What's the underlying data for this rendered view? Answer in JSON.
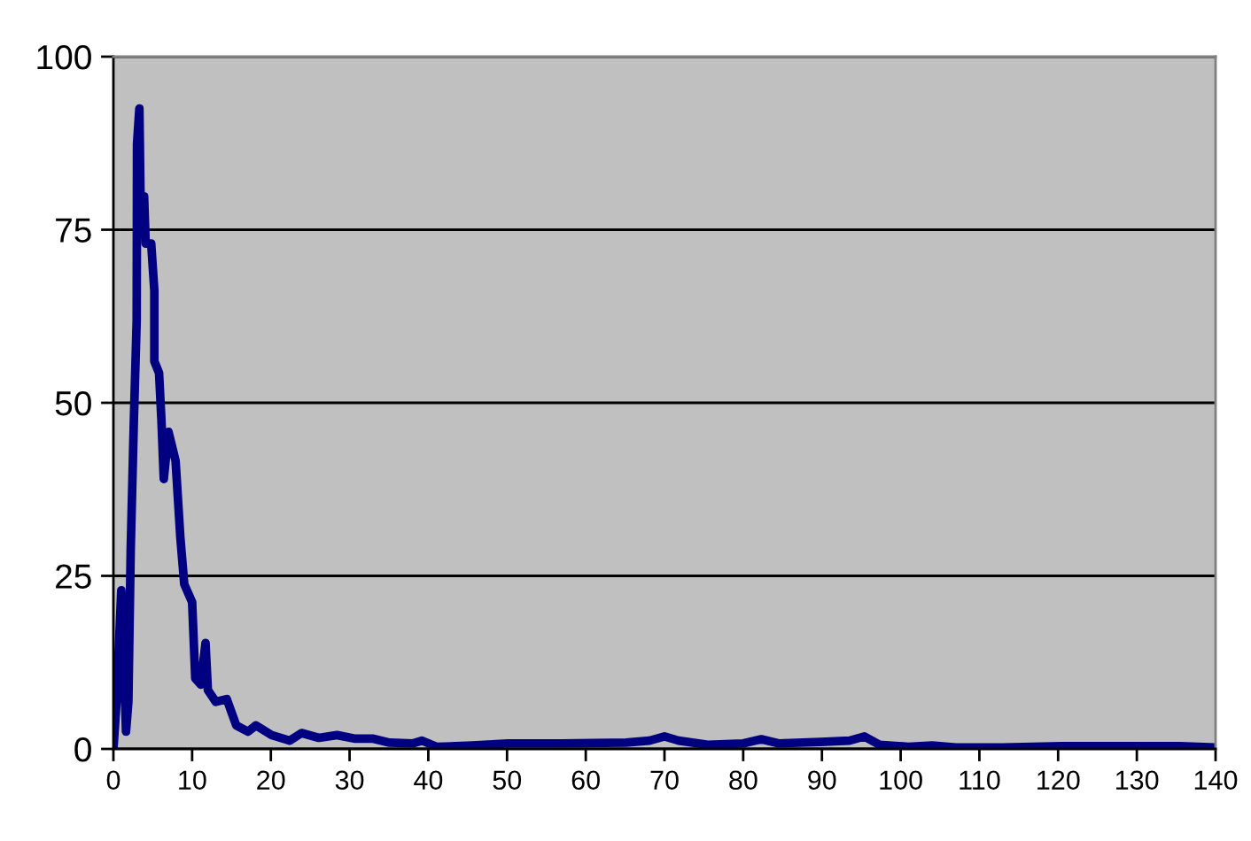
{
  "chart_data": {
    "type": "line",
    "xlim": [
      0,
      140
    ],
    "ylim": [
      0,
      100
    ],
    "xticks": [
      0,
      10,
      20,
      30,
      40,
      50,
      60,
      70,
      80,
      90,
      100,
      110,
      120,
      130,
      140
    ],
    "yticks": [
      0,
      25,
      50,
      75,
      100
    ],
    "grid": "y",
    "marker": "none",
    "line_style": "solid",
    "series": [
      {
        "color": "#000080",
        "x": [
          0,
          0.4,
          1.0,
          1.3,
          1.6,
          1.9,
          2.2,
          2.6,
          2.96,
          3.0,
          3.3,
          3.5,
          3.9,
          4.1,
          4.8,
          5.2,
          5.2,
          5.8,
          6.1,
          6.4,
          7.0,
          7.9,
          8.5,
          9.0,
          10,
          10.4,
          11.1,
          11.7,
          12,
          13,
          14.4,
          15.6,
          17.1,
          18.1,
          20.1,
          22.4,
          23.9,
          26.1,
          28.4,
          30.6,
          32.9,
          35.1,
          38.1,
          39.2,
          41.1,
          45.6,
          50.1,
          56.9,
          65.1,
          68.1,
          70,
          71.8,
          75.5,
          80,
          82.3,
          84.5,
          89.8,
          93.5,
          95.4,
          97.3,
          101,
          104,
          107,
          113,
          120.5,
          128,
          135.5,
          140
        ],
        "values": [
          0,
          6.8,
          22.9,
          15,
          2.5,
          6.8,
          28.9,
          47.5,
          62,
          87.4,
          92.5,
          74.7,
          79.8,
          73,
          73,
          66.2,
          56,
          54.3,
          47.5,
          39,
          45.8,
          41.6,
          30.6,
          23.8,
          21.2,
          10.2,
          9.3,
          15.3,
          8.5,
          6.8,
          7.2,
          3.4,
          2.5,
          3.4,
          2.0,
          1.2,
          2.3,
          1.6,
          2.0,
          1.5,
          1.5,
          0.9,
          0.8,
          1.2,
          0.3,
          0.5,
          0.8,
          0.8,
          0.9,
          1.2,
          1.8,
          1.2,
          0.6,
          0.8,
          1.4,
          0.8,
          1.0,
          1.2,
          1.8,
          0.6,
          0.3,
          0.5,
          0.2,
          0.2,
          0.4,
          0.4,
          0.4,
          0.2
        ]
      }
    ]
  }
}
